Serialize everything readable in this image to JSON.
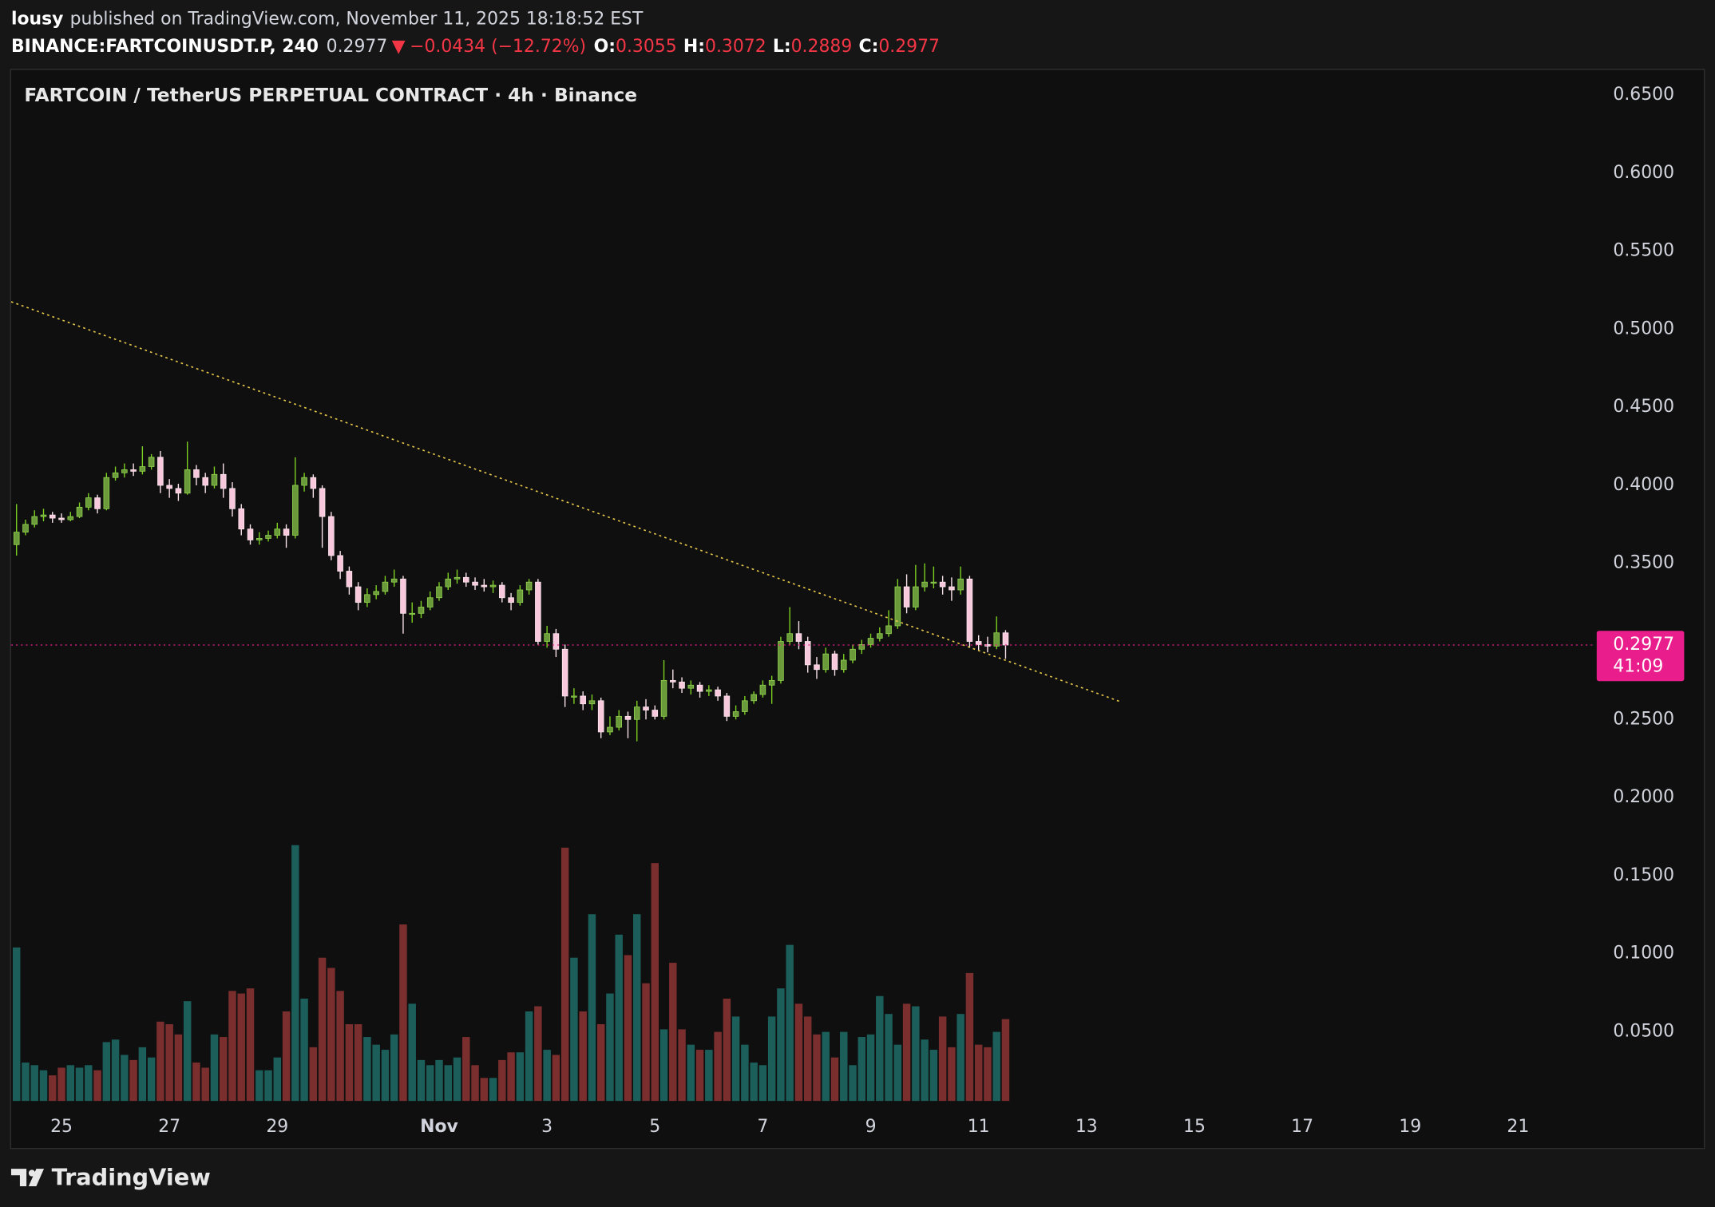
{
  "header": {
    "author": "lousy",
    "published": "published on TradingView.com, November 11, 2025 18:18:52 EST",
    "symbol": "BINANCE:FARTCOINUSDT.P, 240",
    "last": "0.2977",
    "arrow": "▼",
    "change": "−0.0434 (−12.72%)",
    "o_label": "O:",
    "o": "0.3055",
    "h_label": "H:",
    "h": "0.3072",
    "l_label": "L:",
    "l": "0.2889",
    "c_label": "C:",
    "c": "0.2977"
  },
  "footer": {
    "brand": "TradingView"
  },
  "chart_data": {
    "type": "candlestick",
    "title": "FARTCOIN / TetherUS PERPETUAL CONTRACT · 4h · Binance",
    "open": [
      0.362,
      0.37,
      0.375,
      0.38,
      0.381,
      0.379,
      0.378,
      0.38,
      0.386,
      0.392,
      0.385,
      0.405,
      0.408,
      0.41,
      0.409,
      0.412,
      0.418,
      0.4,
      0.398,
      0.395,
      0.41,
      0.405,
      0.4,
      0.407,
      0.398,
      0.385,
      0.372,
      0.365,
      0.366,
      0.368,
      0.372,
      0.368,
      0.4,
      0.405,
      0.398,
      0.38,
      0.355,
      0.345,
      0.335,
      0.325,
      0.33,
      0.332,
      0.338,
      0.34,
      0.318,
      0.318,
      0.322,
      0.328,
      0.335,
      0.34,
      0.341,
      0.338,
      0.336,
      0.335,
      0.336,
      0.328,
      0.325,
      0.333,
      0.338,
      0.3,
      0.305,
      0.295,
      0.265,
      0.265,
      0.26,
      0.262,
      0.242,
      0.245,
      0.252,
      0.25,
      0.258,
      0.256,
      0.252,
      0.275,
      0.274,
      0.27,
      0.272,
      0.268,
      0.269,
      0.265,
      0.252,
      0.255,
      0.262,
      0.266,
      0.272,
      0.275,
      0.3,
      0.305,
      0.3,
      0.285,
      0.282,
      0.292,
      0.282,
      0.288,
      0.295,
      0.298,
      0.302,
      0.305,
      0.31,
      0.335,
      0.322,
      0.335,
      0.338,
      0.338,
      0.335,
      0.333,
      0.34,
      0.3,
      0.298,
      0.297,
      0.3055
    ],
    "high": [
      0.388,
      0.378,
      0.384,
      0.385,
      0.383,
      0.382,
      0.383,
      0.389,
      0.395,
      0.394,
      0.408,
      0.412,
      0.414,
      0.414,
      0.425,
      0.42,
      0.422,
      0.404,
      0.401,
      0.428,
      0.413,
      0.408,
      0.412,
      0.414,
      0.402,
      0.388,
      0.375,
      0.37,
      0.371,
      0.376,
      0.375,
      0.418,
      0.408,
      0.407,
      0.4,
      0.383,
      0.358,
      0.348,
      0.338,
      0.334,
      0.336,
      0.342,
      0.346,
      0.342,
      0.325,
      0.326,
      0.332,
      0.338,
      0.344,
      0.346,
      0.344,
      0.341,
      0.34,
      0.339,
      0.338,
      0.331,
      0.336,
      0.34,
      0.34,
      0.31,
      0.308,
      0.298,
      0.27,
      0.268,
      0.266,
      0.264,
      0.252,
      0.256,
      0.255,
      0.262,
      0.263,
      0.259,
      0.288,
      0.282,
      0.277,
      0.275,
      0.274,
      0.272,
      0.271,
      0.267,
      0.259,
      0.265,
      0.268,
      0.275,
      0.278,
      0.303,
      0.322,
      0.313,
      0.303,
      0.29,
      0.296,
      0.294,
      0.292,
      0.298,
      0.301,
      0.305,
      0.309,
      0.32,
      0.34,
      0.343,
      0.349,
      0.35,
      0.348,
      0.342,
      0.341,
      0.348,
      0.342,
      0.304,
      0.303,
      0.316,
      0.3072
    ],
    "low": [
      0.355,
      0.368,
      0.373,
      0.377,
      0.376,
      0.376,
      0.377,
      0.379,
      0.384,
      0.382,
      0.384,
      0.403,
      0.405,
      0.406,
      0.407,
      0.41,
      0.395,
      0.392,
      0.39,
      0.394,
      0.4,
      0.395,
      0.398,
      0.392,
      0.38,
      0.368,
      0.362,
      0.362,
      0.364,
      0.366,
      0.36,
      0.366,
      0.396,
      0.392,
      0.36,
      0.352,
      0.34,
      0.33,
      0.32,
      0.322,
      0.327,
      0.33,
      0.335,
      0.305,
      0.312,
      0.315,
      0.32,
      0.326,
      0.333,
      0.337,
      0.335,
      0.333,
      0.332,
      0.331,
      0.325,
      0.32,
      0.323,
      0.33,
      0.298,
      0.296,
      0.29,
      0.258,
      0.26,
      0.256,
      0.256,
      0.238,
      0.24,
      0.243,
      0.238,
      0.236,
      0.25,
      0.25,
      0.25,
      0.27,
      0.267,
      0.266,
      0.264,
      0.265,
      0.262,
      0.249,
      0.25,
      0.253,
      0.26,
      0.264,
      0.26,
      0.273,
      0.298,
      0.295,
      0.28,
      0.276,
      0.28,
      0.278,
      0.28,
      0.286,
      0.292,
      0.296,
      0.3,
      0.303,
      0.308,
      0.318,
      0.32,
      0.332,
      0.334,
      0.33,
      0.326,
      0.33,
      0.296,
      0.294,
      0.293,
      0.295,
      0.2889
    ],
    "close": [
      0.37,
      0.375,
      0.38,
      0.381,
      0.379,
      0.378,
      0.38,
      0.386,
      0.392,
      0.385,
      0.405,
      0.408,
      0.41,
      0.409,
      0.412,
      0.418,
      0.4,
      0.398,
      0.395,
      0.41,
      0.405,
      0.4,
      0.407,
      0.398,
      0.385,
      0.372,
      0.365,
      0.366,
      0.368,
      0.372,
      0.368,
      0.4,
      0.405,
      0.398,
      0.38,
      0.355,
      0.345,
      0.335,
      0.325,
      0.33,
      0.332,
      0.338,
      0.34,
      0.318,
      0.318,
      0.322,
      0.328,
      0.335,
      0.34,
      0.341,
      0.338,
      0.336,
      0.335,
      0.336,
      0.328,
      0.325,
      0.333,
      0.338,
      0.3,
      0.305,
      0.295,
      0.265,
      0.265,
      0.26,
      0.262,
      0.242,
      0.245,
      0.252,
      0.25,
      0.258,
      0.256,
      0.252,
      0.275,
      0.274,
      0.27,
      0.272,
      0.268,
      0.269,
      0.265,
      0.252,
      0.255,
      0.262,
      0.266,
      0.272,
      0.275,
      0.3,
      0.305,
      0.3,
      0.285,
      0.282,
      0.292,
      0.282,
      0.288,
      0.295,
      0.298,
      0.302,
      0.305,
      0.31,
      0.335,
      0.322,
      0.335,
      0.338,
      0.338,
      0.335,
      0.333,
      0.34,
      0.3,
      0.298,
      0.297,
      0.3055,
      0.2977
    ],
    "volume": [
      60,
      15,
      14,
      12,
      10,
      13,
      14,
      13,
      14,
      12,
      23,
      24,
      18,
      16,
      21,
      17,
      31,
      30,
      26,
      39,
      15,
      13,
      26,
      25,
      43,
      42,
      44,
      12,
      12,
      17,
      35,
      100,
      40,
      21,
      56,
      52,
      43,
      30,
      30,
      25,
      22,
      20,
      26,
      69,
      38,
      16,
      14,
      16,
      14,
      17,
      25,
      14,
      9,
      9,
      16,
      19,
      19,
      35,
      37,
      20,
      18,
      99,
      56,
      35,
      73,
      30,
      42,
      65,
      57,
      73,
      46,
      93,
      28,
      54,
      28,
      22,
      20,
      20,
      27,
      40,
      33,
      22,
      15,
      14,
      33,
      44,
      61,
      38,
      33,
      26,
      27,
      17,
      27,
      14,
      25,
      26,
      41,
      34,
      22,
      38,
      37,
      24,
      20,
      33,
      21,
      34,
      50,
      22,
      21,
      27,
      32
    ],
    "up_color": "#6a9a3a",
    "down_color": "#f8c8dc",
    "volume_up_color": "#1b5e5a",
    "volume_down_color": "#7a2e2e",
    "xlim": [
      -0.6,
      175.5
    ],
    "xticks": [
      {
        "value": 5,
        "label": "25"
      },
      {
        "value": 17,
        "label": "27"
      },
      {
        "value": 29,
        "label": "29"
      },
      {
        "value": 47,
        "label": "Nov"
      },
      {
        "value": 59,
        "label": "3"
      },
      {
        "value": 71,
        "label": "5"
      },
      {
        "value": 83,
        "label": "7"
      },
      {
        "value": 95,
        "label": "9"
      },
      {
        "value": 107,
        "label": "11"
      },
      {
        "value": 119,
        "label": "13"
      },
      {
        "value": 131,
        "label": "15"
      },
      {
        "value": 143,
        "label": "17"
      },
      {
        "value": 155,
        "label": "19"
      },
      {
        "value": 167,
        "label": "21"
      }
    ],
    "ylim": [
      0,
      0.6668
    ],
    "yticks": [
      {
        "value": 0.65,
        "label": "0.6500"
      },
      {
        "value": 0.6,
        "label": "0.6000"
      },
      {
        "value": 0.55,
        "label": "0.5500"
      },
      {
        "value": 0.5,
        "label": "0.5000"
      },
      {
        "value": 0.45,
        "label": "0.4500"
      },
      {
        "value": 0.4,
        "label": "0.4000"
      },
      {
        "value": 0.35,
        "label": "0.3500"
      },
      {
        "value": 0.25,
        "label": "0.2500"
      },
      {
        "value": 0.2,
        "label": "0.2000"
      },
      {
        "value": 0.15,
        "label": "0.1500"
      },
      {
        "value": 0.1,
        "label": "0.1000"
      },
      {
        "value": 0.05,
        "label": "0.0500"
      }
    ],
    "last_price": 0.2977,
    "price_label": "0.2977",
    "countdown": "41:09",
    "price_color": "#e91e8c"
  }
}
